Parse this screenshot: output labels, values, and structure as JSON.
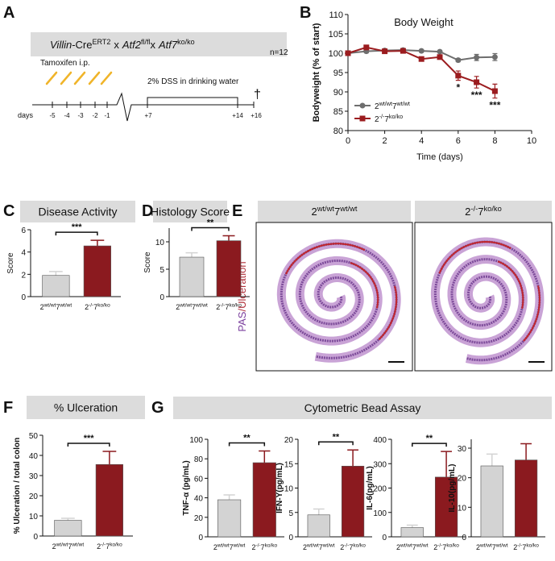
{
  "panel_letters": [
    "A",
    "B",
    "C",
    "D",
    "E",
    "F",
    "G"
  ],
  "diagram": {
    "cross": [
      "Villin",
      "-Cre",
      "ERT2",
      "x",
      "Atf2",
      "fl/fl",
      "x",
      "Atf7",
      "ko/ko"
    ],
    "tamoxifen": "Tamoxifen i.p.",
    "dss": "2% DSS in drinking water",
    "n": "n=12",
    "dagger": "†",
    "days_label": "days",
    "days": [
      "-5",
      "-4",
      "-3",
      "-2",
      "-1",
      "+7",
      "+14",
      "+16"
    ]
  },
  "histology": {
    "stain": [
      "PAS",
      "/Ulceration"
    ],
    "groups": [
      [
        "2",
        "wt/wt",
        "7",
        "wt/wt"
      ],
      [
        "2",
        "-/-",
        "7",
        "ko/ko"
      ]
    ]
  },
  "section_title": "Cytometric Bead Assay",
  "chart_data": [
    {
      "type": "line",
      "title": "Body Weight",
      "xlabel": "Time (days)",
      "ylabel": "Bodyweight (% of start)",
      "x": [
        0,
        1,
        2,
        3,
        4,
        5,
        6,
        7,
        8
      ],
      "series": [
        {
          "name": [
            "2",
            "wt/wt",
            "7",
            "wt/wt"
          ],
          "color": "#6e6e6e",
          "marker": "circle",
          "values": [
            100,
            100.5,
            100.7,
            100.8,
            100.6,
            100.4,
            98.2,
            98.9,
            99.0
          ],
          "errors": [
            0.3,
            0.4,
            0.3,
            0.3,
            0.3,
            0.3,
            0.4,
            0.8,
            0.9
          ]
        },
        {
          "name": [
            "2",
            "-/-",
            "7",
            "ko/ko"
          ],
          "color": "#9b1c1f",
          "marker": "square",
          "values": [
            100,
            101.5,
            100.5,
            100.6,
            98.5,
            99.0,
            94.2,
            92.5,
            90.2
          ],
          "errors": [
            0.3,
            0.5,
            0.4,
            0.4,
            0.5,
            0.5,
            1.2,
            1.5,
            1.8
          ]
        }
      ],
      "annotations": [
        {
          "x": 6,
          "text": "*"
        },
        {
          "x": 7,
          "text": "***"
        },
        {
          "x": 8,
          "text": "***"
        }
      ],
      "xlim": [
        0,
        10
      ],
      "xticks": [
        0,
        2,
        4,
        6,
        8,
        10
      ],
      "ylim": [
        80,
        110
      ],
      "yticks": [
        80,
        85,
        90,
        95,
        100,
        105,
        110
      ]
    },
    {
      "type": "bar",
      "title": "Disease Activity",
      "ylabel": "Score",
      "categories": [
        [
          "2",
          "wt/wt",
          "7",
          "wt/wt"
        ],
        [
          "2",
          "-/-",
          "7",
          "ko/ko"
        ]
      ],
      "values": [
        1.9,
        4.55
      ],
      "errors": [
        0.35,
        0.5
      ],
      "colors": [
        "#d3d3d3",
        "#8b1a1f"
      ],
      "significance": "***",
      "ylim": [
        0,
        6
      ],
      "yticks": [
        0,
        2,
        4,
        6
      ]
    },
    {
      "type": "bar",
      "title": "Histology Score",
      "ylabel": "Score",
      "categories": [
        [
          "2",
          "wt/wt",
          "7",
          "wt/wt"
        ],
        [
          "2",
          "-/-",
          "7",
          "ko/ko"
        ]
      ],
      "values": [
        7.2,
        10.2
      ],
      "errors": [
        0.8,
        0.9
      ],
      "colors": [
        "#d3d3d3",
        "#8b1a1f"
      ],
      "significance": "**",
      "ylim": [
        0,
        12.5
      ],
      "yticks": [
        0,
        5,
        10
      ]
    },
    {
      "type": "bar",
      "title": "% Ulceration",
      "ylabel": "% Ulceration / total colon",
      "categories": [
        [
          "2",
          "wt/wt",
          "7",
          "wt/wt"
        ],
        [
          "2",
          "-/-",
          "7",
          "ko/ko"
        ]
      ],
      "values": [
        7.8,
        35.5
      ],
      "errors": [
        1.0,
        6.5
      ],
      "colors": [
        "#d3d3d3",
        "#8b1a1f"
      ],
      "significance": "***",
      "ylim": [
        0,
        50
      ],
      "yticks": [
        0,
        10,
        20,
        30,
        40,
        50
      ]
    },
    {
      "type": "bar",
      "ylabel": "TNF-α (pg/mL)",
      "categories": [
        [
          "2",
          "wt/wt",
          "7",
          "wt/wt"
        ],
        [
          "2",
          "-/-",
          "7",
          "ko/ko"
        ]
      ],
      "values": [
        38,
        76
      ],
      "errors": [
        5,
        12
      ],
      "colors": [
        "#d3d3d3",
        "#8b1a1f"
      ],
      "significance": "**",
      "ylim": [
        0,
        100
      ],
      "yticks": [
        0,
        20,
        40,
        60,
        80,
        100
      ]
    },
    {
      "type": "bar",
      "ylabel": "IFN-Υ(pg/mL)",
      "categories": [
        [
          "2",
          "wt/wt",
          "7",
          "wt/wt"
        ],
        [
          "2",
          "-/-",
          "7",
          "ko/ko"
        ]
      ],
      "values": [
        4.5,
        14.5
      ],
      "errors": [
        1.2,
        3.3
      ],
      "colors": [
        "#d3d3d3",
        "#8b1a1f"
      ],
      "significance": "**",
      "ylim": [
        0,
        20
      ],
      "yticks": [
        0,
        5,
        10,
        15,
        20
      ]
    },
    {
      "type": "bar",
      "ylabel": "IL-6(pg/mL)",
      "categories": [
        [
          "2",
          "wt/wt",
          "7",
          "wt/wt"
        ],
        [
          "2",
          "-/-",
          "7",
          "ko/ko"
        ]
      ],
      "values": [
        38,
        245
      ],
      "errors": [
        10,
        105
      ],
      "colors": [
        "#d3d3d3",
        "#8b1a1f"
      ],
      "significance": "**",
      "ylim": [
        0,
        400
      ],
      "yticks": [
        0,
        100,
        200,
        300,
        400
      ]
    },
    {
      "type": "bar",
      "ylabel": "IL-10(pg/mL)",
      "categories": [
        [
          "2",
          "wt/wt",
          "7",
          "wt/wt"
        ],
        [
          "2",
          "-/-",
          "7",
          "ko/ko"
        ]
      ],
      "values": [
        24,
        26
      ],
      "errors": [
        4,
        5.5
      ],
      "colors": [
        "#d3d3d3",
        "#8b1a1f"
      ],
      "ylim": [
        0,
        33
      ],
      "yticks": [
        0,
        10,
        20,
        30
      ]
    }
  ]
}
